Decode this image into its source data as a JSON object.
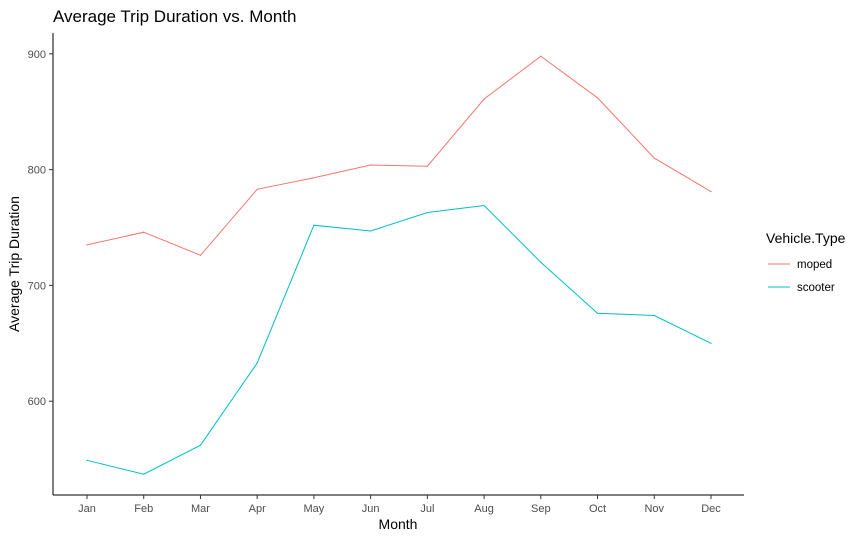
{
  "chart_data": {
    "type": "line",
    "title": "Average Trip Duration vs. Month",
    "xlabel": "Month",
    "ylabel": "Average Trip Duration",
    "categories": [
      "Jan",
      "Feb",
      "Mar",
      "Apr",
      "May",
      "Jun",
      "Jul",
      "Aug",
      "Sep",
      "Oct",
      "Nov",
      "Dec"
    ],
    "yticks": [
      600,
      700,
      800,
      900
    ],
    "ylim": [
      519,
      918
    ],
    "grid": false,
    "legend": {
      "title": "Vehicle.Type",
      "placement": "right"
    },
    "series": [
      {
        "name": "moped",
        "color": "#F8766D",
        "values": [
          735,
          746,
          726,
          783,
          793,
          804,
          803,
          861,
          898,
          862,
          810,
          781
        ]
      },
      {
        "name": "scooter",
        "color": "#00BFC4",
        "values": [
          549,
          537,
          562,
          633,
          752,
          747,
          763,
          769,
          720,
          676,
          674,
          650
        ]
      }
    ]
  }
}
